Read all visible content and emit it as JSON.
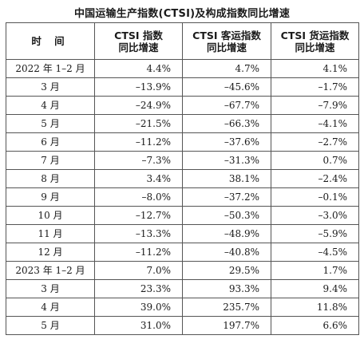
{
  "title": "中国运输生产指数(CTSI)及构成指数同比增速",
  "table": {
    "headers": [
      [
        "时 间"
      ],
      [
        "CTSI 指数",
        "同比增速"
      ],
      [
        "CTSI 客运指数",
        "同比增速"
      ],
      [
        "CTSI 货运指数",
        "同比增速"
      ]
    ],
    "rows": [
      [
        "2022 年 1–2 月",
        "4.4%",
        "4.7%",
        "4.1%"
      ],
      [
        "3 月",
        "–13.9%",
        "–45.6%",
        "–1.7%"
      ],
      [
        "4 月",
        "–24.9%",
        "–67.7%",
        "–7.9%"
      ],
      [
        "5 月",
        "–21.5%",
        "–66.3%",
        "–4.1%"
      ],
      [
        "6 月",
        "–11.2%",
        "–37.6%",
        "–2.7%"
      ],
      [
        "7 月",
        "–7.3%",
        "–31.3%",
        "0.7%"
      ],
      [
        "8 月",
        "3.4%",
        "38.1%",
        "–2.4%"
      ],
      [
        "9 月",
        "–8.0%",
        "–37.2%",
        "–0.1%"
      ],
      [
        "10 月",
        "–12.7%",
        "–50.3%",
        "–3.0%"
      ],
      [
        "11 月",
        "–13.3%",
        "–48.9%",
        "–5.9%"
      ],
      [
        "12 月",
        "–11.2%",
        "–40.8%",
        "–4.5%"
      ],
      [
        "2023 年 1–2 月",
        "7.0%",
        "29.5%",
        "1.7%"
      ],
      [
        "3 月",
        "23.3%",
        "93.3%",
        "9.4%"
      ],
      [
        "4 月",
        "39.0%",
        "235.7%",
        "11.8%"
      ],
      [
        "5 月",
        "31.0%",
        "197.7%",
        "6.6%"
      ]
    ]
  }
}
